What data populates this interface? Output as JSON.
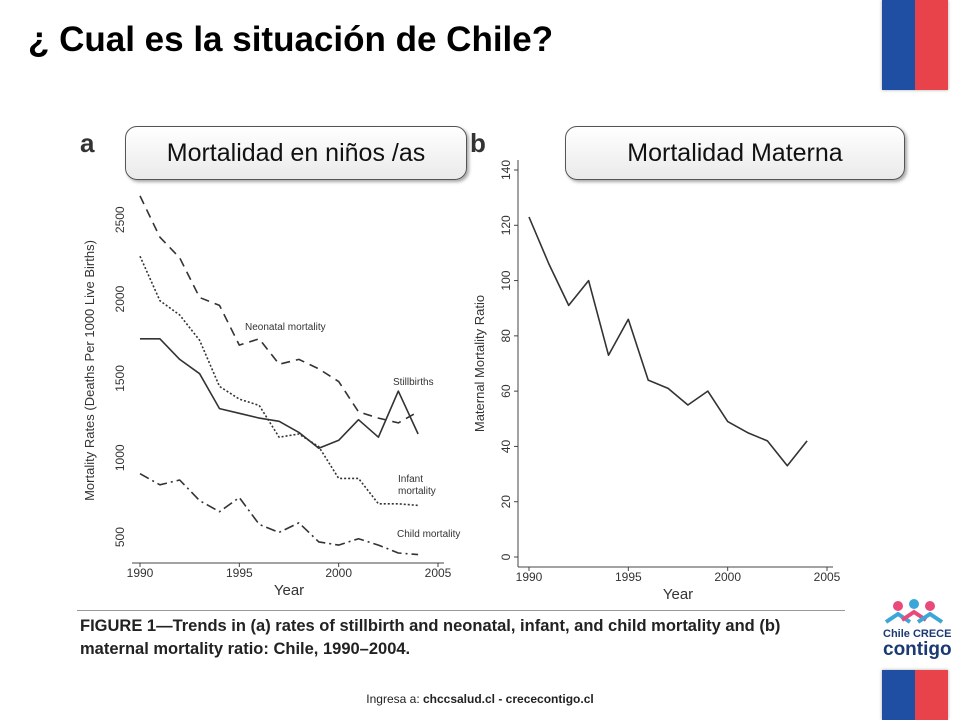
{
  "slide": {
    "title": "¿ Cual es la situación de Chile?",
    "pill_a": "Mortalidad en niños /as",
    "pill_b": "Mortalidad Materna",
    "caption_line1": "FIGURE 1—Trends in (a) rates of stillbirth and neonatal, infant, and child mortality and (b)",
    "caption_line2": "maternal mortality ratio: Chile, 1990–2004.",
    "footer_prefix": "Ingresa a: ",
    "footer_links": "chccsalud.cl - crececontigo.cl",
    "logo_line1": "Chile CRECE",
    "logo_line2": "contigo"
  },
  "chart_data": [
    {
      "type": "line",
      "panel_label": "a",
      "xlabel": "Year",
      "ylabel": "Mortality Rates (Deaths Per 1000 Live Births)",
      "xlim": [
        1990,
        2005
      ],
      "ylim": [
        400,
        2700
      ],
      "xticks": [
        1990,
        1995,
        2000,
        2005
      ],
      "yticks": [
        500,
        1000,
        1500,
        2000,
        2500
      ],
      "x": [
        1990,
        1991,
        1992,
        1993,
        1994,
        1995,
        1996,
        1997,
        1998,
        1999,
        2000,
        2001,
        2002,
        2003,
        2004
      ],
      "series": [
        {
          "name": "Neonatal mortality",
          "style": "dashed",
          "values": [
            2650,
            2390,
            2260,
            2010,
            1960,
            1710,
            1750,
            1590,
            1620,
            1560,
            1480,
            1290,
            1250,
            1220,
            1290
          ]
        },
        {
          "name": "Stillbirths",
          "style": "solid",
          "values": [
            1750,
            1750,
            1620,
            1530,
            1310,
            1280,
            1250,
            1230,
            1160,
            1060,
            1110,
            1240,
            1130,
            1420,
            1150
          ]
        },
        {
          "name": "Infant mortality",
          "style": "dotted",
          "values": [
            2270,
            1990,
            1900,
            1740,
            1450,
            1370,
            1330,
            1130,
            1150,
            1070,
            870,
            870,
            710,
            710,
            700
          ]
        },
        {
          "name": "Child mortality",
          "style": "dashdot",
          "values": [
            900,
            830,
            860,
            730,
            660,
            750,
            580,
            530,
            590,
            470,
            450,
            490,
            450,
            400,
            390
          ]
        }
      ],
      "annotations": [
        "Neonatal mortality",
        "Stillbirths",
        "Infant mortality",
        "Child mortality"
      ]
    },
    {
      "type": "line",
      "panel_label": "b",
      "xlabel": "Year",
      "ylabel": "Maternal Mortality Ratio",
      "xlim": [
        1990,
        2005
      ],
      "ylim": [
        0,
        140
      ],
      "xticks": [
        1990,
        1995,
        2000,
        2005
      ],
      "yticks": [
        0,
        20,
        40,
        60,
        80,
        100,
        120,
        140
      ],
      "x": [
        1990,
        1991,
        1992,
        1993,
        1994,
        1995,
        1996,
        1997,
        1998,
        1999,
        2000,
        2001,
        2002,
        2003,
        2004
      ],
      "series": [
        {
          "name": "",
          "style": "solid",
          "values": [
            123,
            106,
            91,
            100,
            73,
            86,
            64,
            61,
            55,
            60,
            49,
            45,
            42,
            33,
            42
          ]
        }
      ]
    }
  ]
}
